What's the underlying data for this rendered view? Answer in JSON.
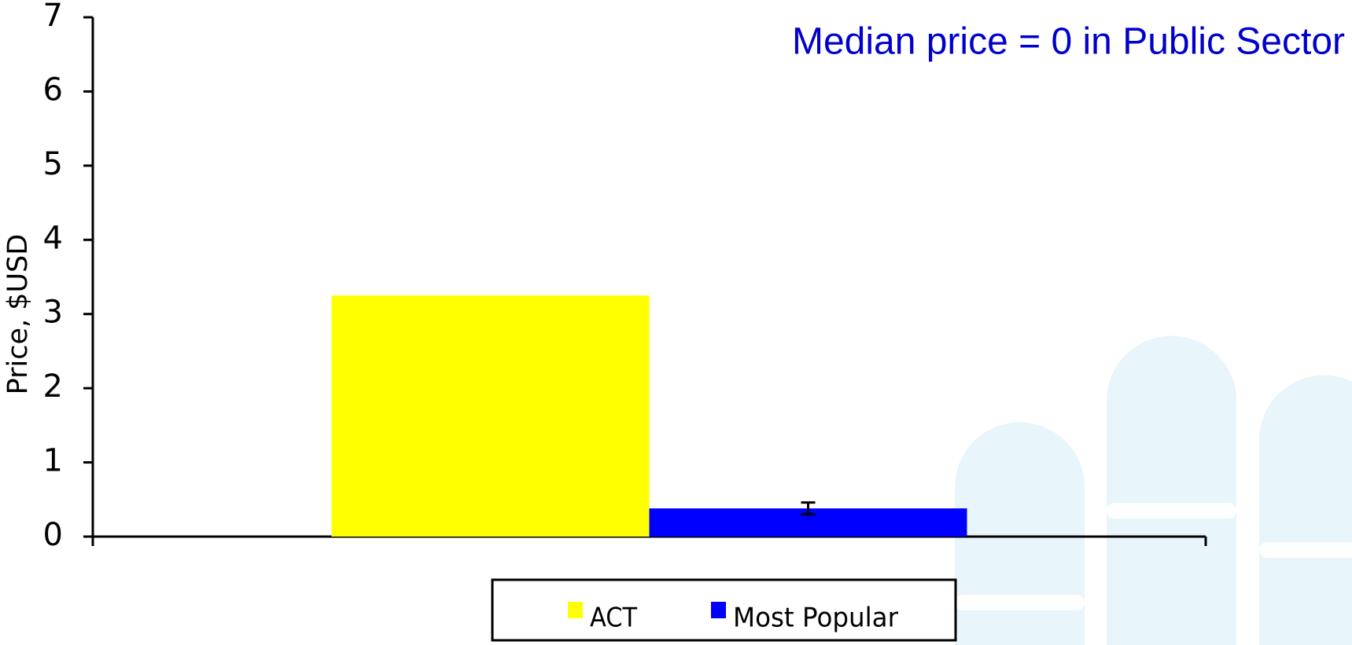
{
  "chart_data": {
    "type": "bar",
    "annotation": "Median price = 0 in Public Sector",
    "y_label": "Price, $USD",
    "categories": [
      null
    ],
    "series": [
      {
        "name": "ACT",
        "color": "#ffff00",
        "values": [
          3.25
        ]
      },
      {
        "name": "Most Popular",
        "color": "#0000ff",
        "values": [
          0.38
        ],
        "errors": [
          0.08
        ]
      }
    ],
    "ylim": [
      0,
      7
    ],
    "yticks": [
      0,
      1,
      2,
      3,
      4,
      5,
      6,
      7
    ],
    "grid": false,
    "legend": "bottom"
  }
}
